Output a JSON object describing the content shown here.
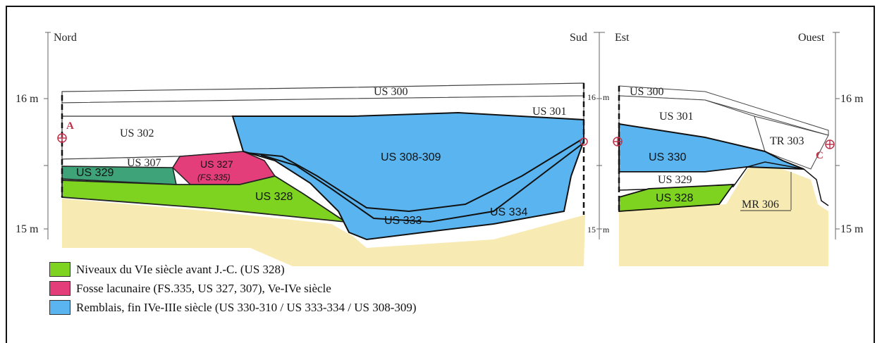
{
  "orientation": {
    "left": {
      "start": "Nord",
      "end": "Sud"
    },
    "right": {
      "start": "Est",
      "end": "Ouest"
    }
  },
  "elevations": {
    "upper": "16 m",
    "lower": "15 m"
  },
  "elevations_small": {
    "upper_a": "16",
    "upper_b": "m",
    "lower_a": "15",
    "lower_b": "m"
  },
  "section_markers": {
    "left": "A",
    "right": "C"
  },
  "layers": {
    "us300_left": "US 300",
    "us301_left": "US 301",
    "us302": "US 302",
    "us307": "US 307",
    "us327": "US 327",
    "fs335": "(FS.335)",
    "us329_left": "US 329",
    "us328_left": "US 328",
    "us308_309": "US 308-309",
    "us333": "US 333",
    "us334": "US 334",
    "us300_right": "US 300",
    "us301_right": "US 301",
    "tr303": "TR 303",
    "us330": "US 330",
    "us329_right": "US 329",
    "us328_right": "US 328",
    "mr306": "MR 306"
  },
  "colors": {
    "green": "#7ed321",
    "pink": "#e33d7a",
    "blue": "#5ab4ef",
    "teal": "#3fa37a",
    "sand": "#f7eab2"
  },
  "legend": [
    {
      "label": "Niveaux du VIe siècle avant J.-C. (US 328)",
      "color": "#7ed321"
    },
    {
      "label": "Fosse lacunaire (FS.335, US 327, 307), Ve-IVe siècle",
      "color": "#e33d7a"
    },
    {
      "label": "Remblais, fin IVe-IIIe siècle (US 330-310 / US 333-334 / US 308-309)",
      "color": "#5ab4ef"
    }
  ]
}
